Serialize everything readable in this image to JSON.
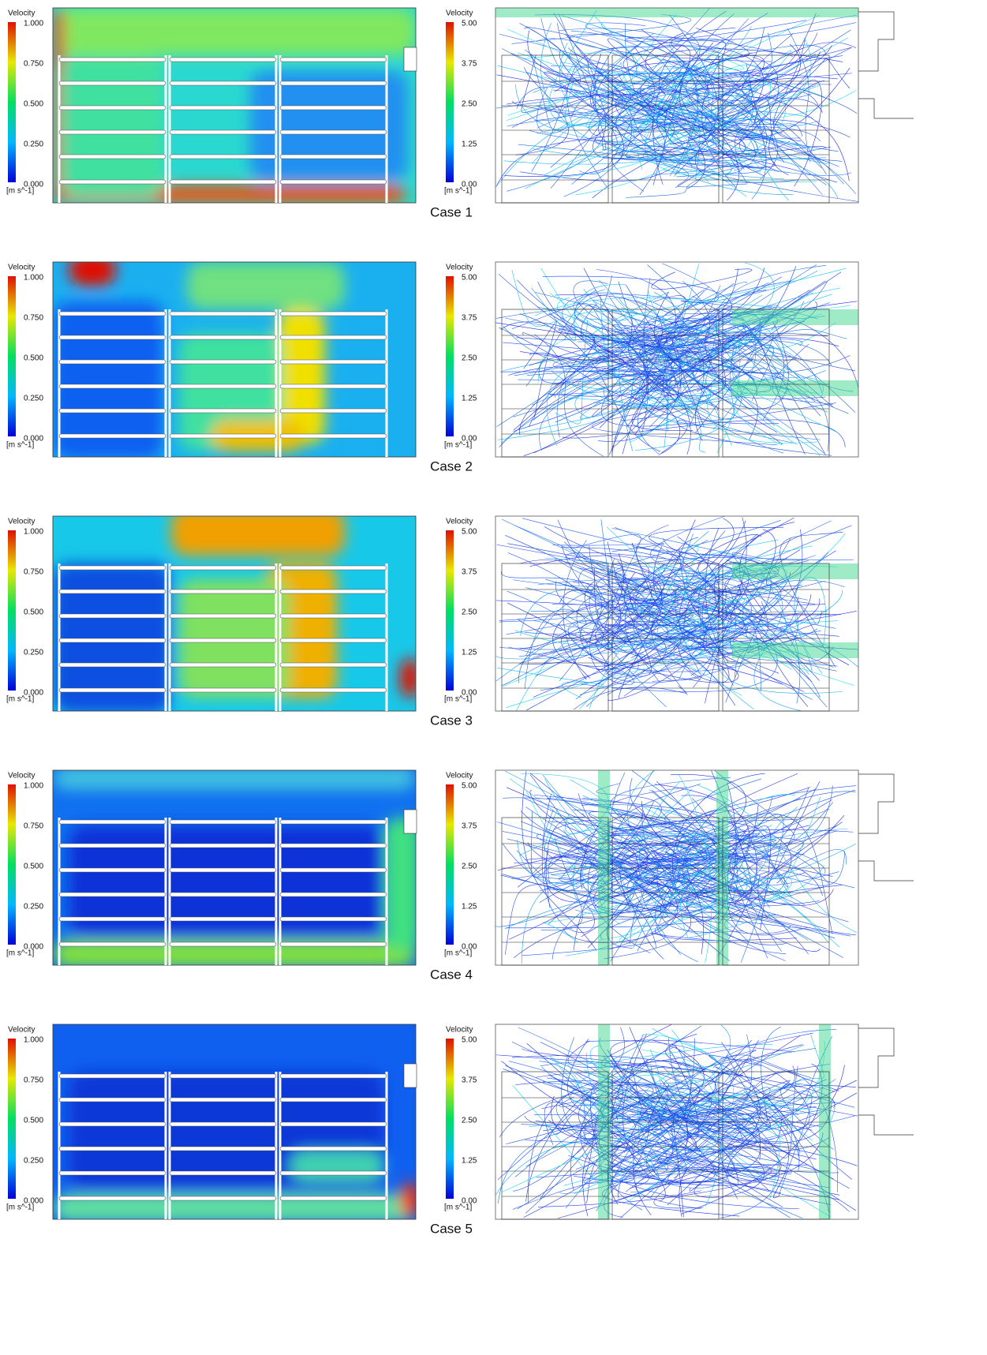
{
  "figure": {
    "cases": [
      {
        "caption": "Case 1",
        "contour": {
          "title": "Velocity",
          "unit": "[m s^-1]",
          "ticks": [
            "1.000",
            "0.750",
            "0.500",
            "0.250",
            "0.000"
          ]
        },
        "streamline": {
          "title": "Velocity",
          "unit": "[m s^-1]",
          "ticks": [
            "5.00",
            "3.75",
            "2.50",
            "1.25",
            "0.00"
          ]
        }
      },
      {
        "caption": "Case 2",
        "contour": {
          "title": "Velocity",
          "unit": "[m s^-1]",
          "ticks": [
            "1.000",
            "0.750",
            "0.500",
            "0.250",
            "0.000"
          ]
        },
        "streamline": {
          "title": "Velocity",
          "unit": "[m s^-1]",
          "ticks": [
            "5.00",
            "3.75",
            "2.50",
            "1.25",
            "0.00"
          ]
        }
      },
      {
        "caption": "Case 3",
        "contour": {
          "title": "Velocity",
          "unit": "[m s^-1]",
          "ticks": [
            "1.000",
            "0.750",
            "0.500",
            "0.250",
            "0.000"
          ]
        },
        "streamline": {
          "title": "Velocity",
          "unit": "[m s^-1]",
          "ticks": [
            "5.00",
            "3.75",
            "2.50",
            "1.25",
            "0.00"
          ]
        }
      },
      {
        "caption": "Case 4",
        "contour": {
          "title": "Velocity",
          "unit": "[m s^-1]",
          "ticks": [
            "1.000",
            "0.750",
            "0.500",
            "0.250",
            "0.000"
          ]
        },
        "streamline": {
          "title": "Velocity",
          "unit": "[m s^-1]",
          "ticks": [
            "5.00",
            "3.75",
            "2.50",
            "1.25",
            "0.00"
          ]
        }
      },
      {
        "caption": "Case 5",
        "contour": {
          "title": "Velocity",
          "unit": "[m s^-1]",
          "ticks": [
            "1.000",
            "0.750",
            "0.500",
            "0.250",
            "0.000"
          ]
        },
        "streamline": {
          "title": "Velocity",
          "unit": "[m s^-1]",
          "ticks": [
            "5.00",
            "3.75",
            "2.50",
            "1.25",
            "0.00"
          ]
        }
      }
    ]
  }
}
